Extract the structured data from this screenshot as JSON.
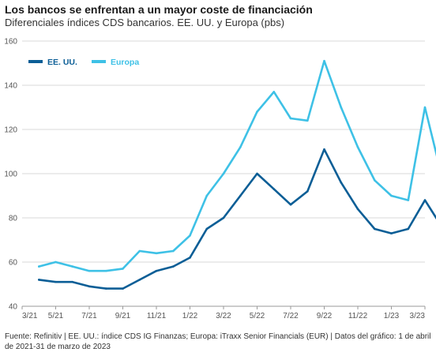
{
  "title": "Los bancos se enfrentan a un mayor coste de financiación",
  "subtitle": "Diferenciales índices CDS bancarios. EE. UU. y Europa (pbs)",
  "footer": "Fuente: Refinitiv  |  EE. UU.: índice CDS IG Finanzas; Europa: iTraxx Senior Financials (EUR)  |  Datos del gráfico: 1 de abril de 2021-31 de marzo de 2023",
  "colors": {
    "us": "#0b5e96",
    "europe": "#3ec1e6",
    "grid": "#d8d8d8",
    "axis": "#9a9a9a"
  },
  "chart_data": {
    "type": "line",
    "title": "Los bancos se enfrentan a un mayor coste de financiación",
    "subtitle": "Diferenciales índices CDS bancarios. EE. UU. y Europa (pbs)",
    "ylim": [
      40,
      160
    ],
    "yticks": [
      "40",
      "60",
      "80",
      "100",
      "120",
      "140",
      "160"
    ],
    "xlim": [
      "2021-03",
      "2023-03"
    ],
    "xticks": [
      "3/21",
      "5/21",
      "7/21",
      "9/21",
      "11/21",
      "1/22",
      "3/22",
      "5/22",
      "7/22",
      "9/22",
      "11/22",
      "1/23",
      "3/23"
    ],
    "grid": "horizontal",
    "legend_position": "top-left",
    "x": [
      "2021-04",
      "2021-05",
      "2021-06",
      "2021-07",
      "2021-08",
      "2021-09",
      "2021-10",
      "2021-11",
      "2021-12",
      "2022-01",
      "2022-02",
      "2022-03",
      "2022-04",
      "2022-05",
      "2022-06",
      "2022-07",
      "2022-08",
      "2022-09",
      "2022-10",
      "2022-11",
      "2022-12",
      "2023-01",
      "2023-02",
      "2023-03",
      "2023-03-31"
    ],
    "series": [
      {
        "name": "EE. UU.",
        "values": [
          52,
          51,
          51,
          49,
          48,
          48,
          52,
          56,
          58,
          62,
          75,
          80,
          90,
          100,
          93,
          86,
          92,
          111,
          96,
          84,
          75,
          73,
          75,
          88,
          76
        ]
      },
      {
        "name": "Europa",
        "values": [
          58,
          60,
          58,
          56,
          56,
          57,
          65,
          64,
          65,
          72,
          90,
          100,
          112,
          128,
          137,
          125,
          124,
          151,
          130,
          112,
          97,
          90,
          88,
          130,
          99
        ]
      }
    ]
  }
}
